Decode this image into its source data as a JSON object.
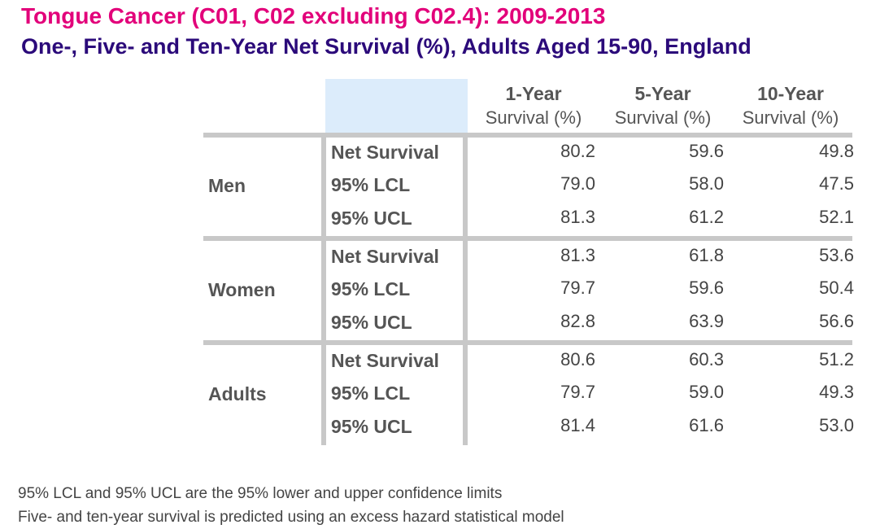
{
  "title": "Tongue Cancer (C01, C02 excluding C02.4): 2009-2013",
  "subtitle": "One-, Five- and Ten-Year Net Survival (%), Adults Aged 15-90, England",
  "colors": {
    "title": "#e2007a",
    "subtitle": "#2b0a7a",
    "header_fill": "#dcecfb",
    "rules": "#c8c8c8"
  },
  "chart_data": {
    "type": "table",
    "columns": [
      {
        "line1": "1-Year",
        "line2": "Survival (%)"
      },
      {
        "line1": "5-Year",
        "line2": "Survival (%)"
      },
      {
        "line1": "10-Year",
        "line2": "Survival (%)"
      }
    ],
    "groups": [
      {
        "name": "Men",
        "rows": [
          {
            "metric": "Net Survival",
            "values": [
              "80.2",
              "59.6",
              "49.8"
            ]
          },
          {
            "metric": "95% LCL",
            "values": [
              "79.0",
              "58.0",
              "47.5"
            ]
          },
          {
            "metric": "95% UCL",
            "values": [
              "81.3",
              "61.2",
              "52.1"
            ]
          }
        ]
      },
      {
        "name": "Women",
        "rows": [
          {
            "metric": "Net Survival",
            "values": [
              "81.3",
              "61.8",
              "53.6"
            ]
          },
          {
            "metric": "95% LCL",
            "values": [
              "79.7",
              "59.6",
              "50.4"
            ]
          },
          {
            "metric": "95% UCL",
            "values": [
              "82.8",
              "63.9",
              "56.6"
            ]
          }
        ]
      },
      {
        "name": "Adults",
        "rows": [
          {
            "metric": "Net Survival",
            "values": [
              "80.6",
              "60.3",
              "51.2"
            ]
          },
          {
            "metric": "95% LCL",
            "values": [
              "79.7",
              "59.0",
              "49.3"
            ]
          },
          {
            "metric": "95% UCL",
            "values": [
              "81.4",
              "61.6",
              "53.0"
            ]
          }
        ]
      }
    ]
  },
  "notes": [
    "95% LCL and 95% UCL are the 95% lower and upper confidence limits",
    "Five- and ten-year survival is predicted using an excess hazard statistical model"
  ]
}
